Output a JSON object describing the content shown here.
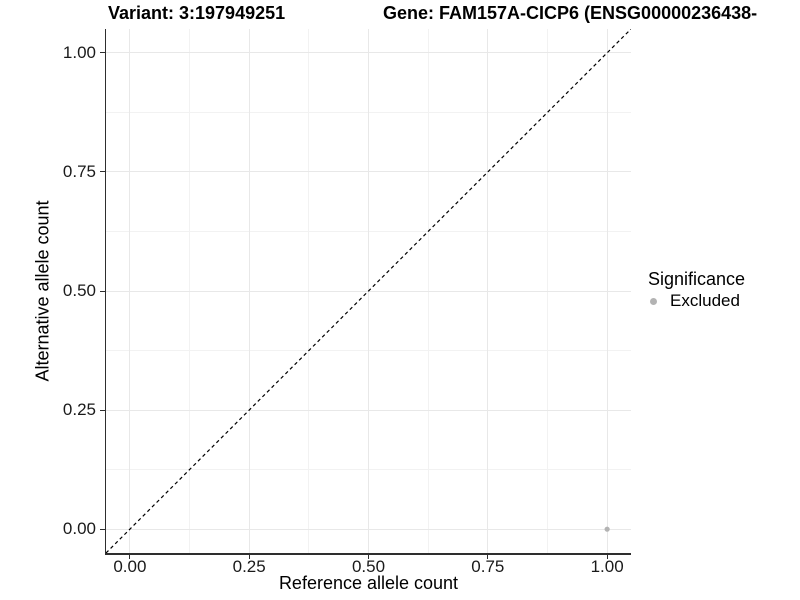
{
  "header": {
    "title_variant": "Variant: 3:197949251",
    "title_gene": "Gene: FAM157A-CICP6 (ENSG00000236438-"
  },
  "chart_data": {
    "type": "scatter",
    "xlabel": "Reference allele count",
    "ylabel": "Alternative allele count",
    "x_range": [
      -0.05,
      1.05
    ],
    "y_range": [
      -0.05,
      1.05
    ],
    "x_breaks": {
      "values": [
        0,
        0.25,
        0.5,
        0.75,
        1
      ],
      "labels": [
        "0.00",
        "0.25",
        "0.50",
        "0.75",
        "1.00"
      ]
    },
    "y_breaks": {
      "values": [
        0,
        0.25,
        0.5,
        0.75,
        1
      ],
      "labels": [
        "0.00",
        "0.25",
        "0.50",
        "0.75",
        "1.00"
      ]
    },
    "x_minor_breaks": [
      0.125,
      0.375,
      0.625,
      0.875
    ],
    "y_minor_breaks": [
      0.125,
      0.375,
      0.625,
      0.875
    ],
    "grid": true,
    "points": [
      {
        "x": 1.0,
        "y": 0.0,
        "series": "Excluded"
      }
    ],
    "reference_line": {
      "slope": 1,
      "intercept": 0,
      "style": "dashed",
      "color": "#000000"
    },
    "legend": {
      "title": "Significance",
      "position": "right",
      "items": [
        {
          "label": "Excluded",
          "color": "#b3b3b3"
        }
      ]
    },
    "colors": {
      "grid_major": "#e8e8e8",
      "grid_minor": "#f2f2f2",
      "axis": "#2e2e2e",
      "point": "#b3b3b3",
      "background": "#ffffff"
    }
  }
}
